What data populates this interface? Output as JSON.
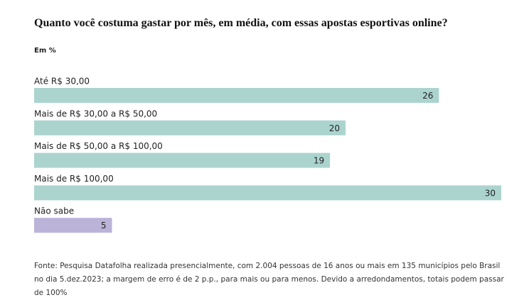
{
  "chart_data": {
    "type": "bar",
    "orientation": "horizontal",
    "title": "Quanto você costuma gastar por mês, em média, com essas apostas esportivas online?",
    "subtitle": "Em %",
    "categories": [
      "Até R$ 30,00",
      "Mais de R$ 30,00 a R$ 50,00",
      "Mais de R$ 50,00 a R$ 100,00",
      "Mais de R$ 100,00",
      "Não sabe"
    ],
    "values": [
      26,
      20,
      19,
      30,
      5
    ],
    "colors": [
      "#acd4cf",
      "#acd4cf",
      "#acd4cf",
      "#acd4cf",
      "#bcb3d9"
    ],
    "source": "Fonte: Pesquisa Datafolha realizada presencialmente, com 2.004 pessoas de 16 anos ou mais em 135 municípios pelo Brasil no dia 5.dez.2023; a margem de erro é de 2 p.p., para mais ou para menos. Devido a arredondamentos, totais podem passar de 100%"
  }
}
